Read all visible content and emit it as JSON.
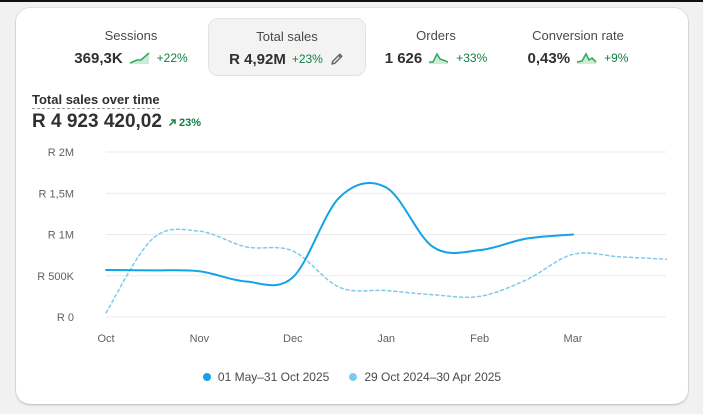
{
  "metrics": [
    {
      "label": "Sessions",
      "value": "369,3K",
      "delta": "+22%",
      "active": false
    },
    {
      "label": "Total sales",
      "value": "R 4,92M",
      "delta": "+23%",
      "active": true
    },
    {
      "label": "Orders",
      "value": "1 626",
      "delta": "+33%",
      "active": false
    },
    {
      "label": "Conversion rate",
      "value": "0,43%",
      "delta": "+9%",
      "active": false
    }
  ],
  "chart_title": "Total sales over time",
  "total_value": "R 4 923 420,02",
  "total_change": "23%",
  "colors": {
    "current": "#13a3e6",
    "previous": "#7ccbef",
    "positive": "#108043"
  },
  "chart_data": {
    "type": "line",
    "title": "Total sales over time",
    "y_ticks": [
      "R 0",
      "R 500K",
      "R 1M",
      "R 1,5M",
      "R 2M"
    ],
    "ylim": [
      0,
      2000000
    ],
    "x_ticks": [
      "Oct",
      "Nov",
      "Dec",
      "Jan",
      "Feb",
      "Mar"
    ],
    "grid": true,
    "legend_position": "bottom",
    "series": [
      {
        "name": "01 May–31 Oct 2025",
        "style": "solid",
        "x": [
          0,
          0.5,
          1,
          1.5,
          2,
          2.5,
          3,
          3.5,
          4,
          4.5,
          5
        ],
        "values": [
          570000,
          565000,
          555000,
          430000,
          480000,
          1450000,
          1570000,
          850000,
          810000,
          950000,
          1000000
        ]
      },
      {
        "name": "29 Oct 2024–30 Apr 2025",
        "style": "dashed",
        "x": [
          0,
          0.5,
          1,
          1.5,
          2,
          2.5,
          3,
          3.5,
          4,
          4.5,
          5,
          5.5,
          6
        ],
        "values": [
          50000,
          950000,
          1040000,
          850000,
          800000,
          360000,
          320000,
          270000,
          250000,
          450000,
          760000,
          730000,
          700000
        ]
      }
    ]
  }
}
